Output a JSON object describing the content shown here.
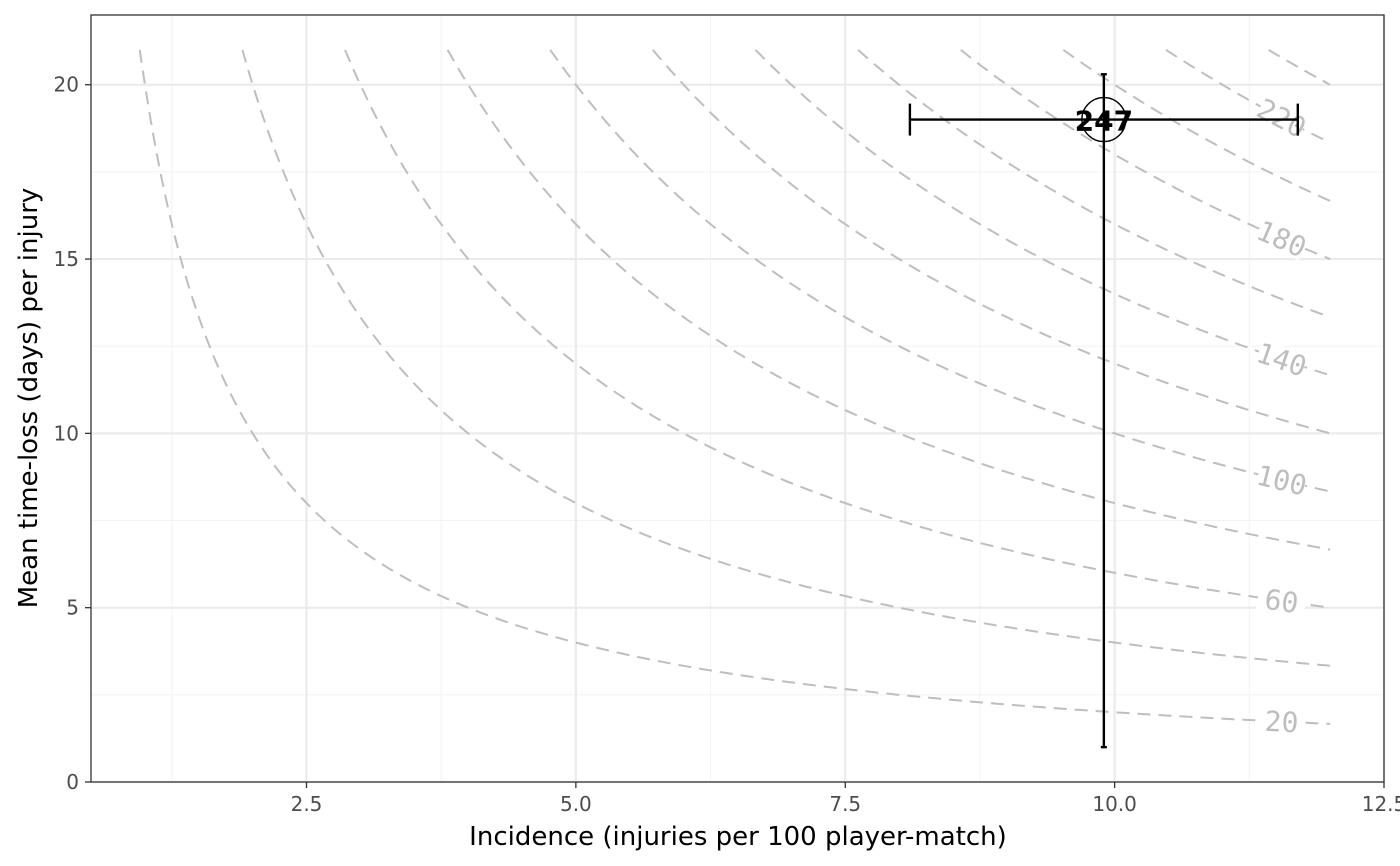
{
  "chart_data": {
    "type": "scatter",
    "title": "",
    "xlabel": "Incidence (injuries per 100 player-match)",
    "ylabel": "Mean time-loss (days) per injury",
    "xlim": [
      0.5,
      12.5
    ],
    "ylim": [
      0,
      22
    ],
    "x_ticks": [
      2.5,
      5.0,
      7.5,
      10.0,
      12.5
    ],
    "x_tick_labels": [
      "2.5",
      "5.0",
      "7.5",
      "10.0",
      "12.5"
    ],
    "y_ticks": [
      0,
      5,
      10,
      15,
      20
    ],
    "y_tick_labels": [
      "0",
      "5",
      "10",
      "15",
      "20"
    ],
    "grid": true,
    "contours": {
      "description": "iso-burden curves x*y = level",
      "levels": [
        20,
        40,
        60,
        80,
        100,
        120,
        140,
        160,
        180,
        200,
        220,
        240
      ],
      "labeled_levels": [
        "20",
        "60",
        "100",
        "140",
        "180",
        "220"
      ],
      "x_max": 12,
      "y_max": 21,
      "color": "#bebebe",
      "dash": "dashed"
    },
    "points": [
      {
        "label": "247",
        "x": 9.9,
        "y": 19,
        "x_err": [
          8.1,
          11.7
        ],
        "y_err": [
          1.0,
          20.3
        ]
      }
    ],
    "colors": {
      "contour": "#bebebe",
      "grid_major": "#ebebeb",
      "grid_minor": "#f4f4f4",
      "panel_border": "#333333",
      "point": "#000000"
    }
  }
}
